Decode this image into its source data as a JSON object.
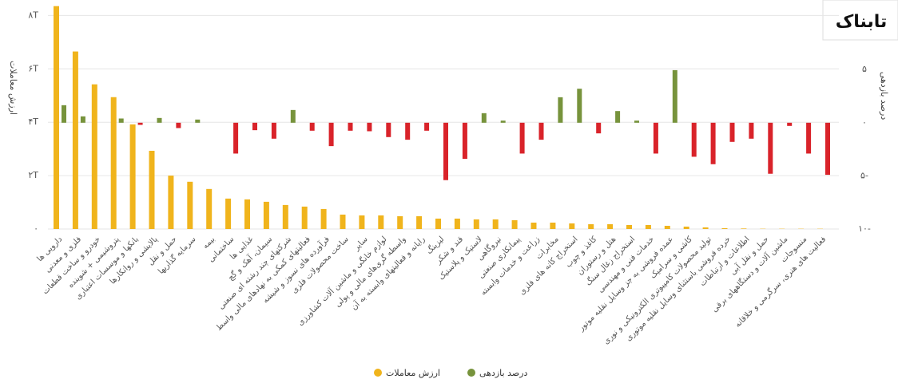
{
  "chart_data": {
    "type": "bar",
    "logo": "تابناک",
    "y_label": "ارزش معاملات",
    "y2_label": "درصد بازدهی",
    "categories": [
      "دارویی ها",
      "فلزی و معدنی",
      "خودرو و ساخت قطعات",
      "پتروشیمی + شوینده",
      "بانکها و موسسات اعتباری",
      "پالایشی و روانکارها",
      "حمل و نقل",
      "سرمایه گذاریها",
      "بیمه",
      "ساختمانی",
      "غذایی ها",
      "سیمان، آهک و گچ",
      "شرکتهای چند رشته ای صنعتی",
      "فعالیتهای کمکی به نهادهای مالی واسط",
      "فرآورده های نسوز و شیشه",
      "ساخت محصولات فلزی",
      "سایر",
      "لوازم خانگی و ماشین آلات کشاورزی",
      "واسطه گری‌های مالی و پولی",
      "رایانه و فعالیتهای وابسته به آن",
      "لیزینگ",
      "قند و شکر",
      "لاستیک و پلاستیک",
      "نیروگاهی",
      "پیمانکاری صنعتی",
      "زراعت و خدمات وابسته",
      "مخابرات",
      "استخراج کانه های فلزی",
      "کاغذ و چوب",
      "هتل و رستوران",
      "استخراج زغال سنگ",
      "خدمات فنی و مهندسی",
      "عمده فروشی به جز وسایل نقلیه موتور",
      "کاشی و سرامیک",
      "تولید محصولات کامپیوتری الکترونیکی و نوری",
      "خرده فروشی باستثنای وسایل نقلیه موتوری",
      "اطلاعات و ارتباطات",
      "حمل و نقل آبی",
      "ماشین آلات و دستگاههای برقی",
      "منسوجات",
      "فعالیت های هنری، سرگرمی و خلاقانه"
    ],
    "series": [
      {
        "name": "ارزش معاملات",
        "color": "#f0b41c",
        "values": [
          8.35,
          6.65,
          5.42,
          4.94,
          3.92,
          2.93,
          2.0,
          1.77,
          1.5,
          1.14,
          1.11,
          1.02,
          0.9,
          0.84,
          0.75,
          0.54,
          0.51,
          0.51,
          0.48,
          0.48,
          0.39,
          0.39,
          0.36,
          0.36,
          0.33,
          0.24,
          0.24,
          0.21,
          0.18,
          0.18,
          0.15,
          0.15,
          0.12,
          0.09,
          0.06,
          0.03,
          0.02,
          0.01,
          0.01,
          0.01,
          0.01
        ]
      },
      {
        "name": "درصد بازدهی",
        "color": "#77933c",
        "negative_color": "#d9232a",
        "axis": "y2",
        "values": [
          1.65,
          0.6,
          0,
          0.4,
          -0.2,
          0.45,
          -0.5,
          0.3,
          0,
          -2.9,
          -0.7,
          -1.5,
          1.2,
          -0.75,
          -2.2,
          -0.75,
          -0.8,
          -1.35,
          -1.6,
          -0.75,
          -5.4,
          -3.4,
          0.9,
          0.2,
          -2.9,
          -1.6,
          2.4,
          3.2,
          -1.0,
          1.1,
          0.2,
          -2.9,
          4.95,
          -3.2,
          -3.9,
          -1.8,
          -1.5,
          -4.8,
          -0.3,
          -2.9,
          -4.9
        ]
      }
    ],
    "ylim": [
      0,
      8.4
    ],
    "yticks": [
      {
        "value": 0,
        "label": "۰"
      },
      {
        "value": 2,
        "label": "۲T"
      },
      {
        "value": 4,
        "label": "۴T"
      },
      {
        "value": 6,
        "label": "۶T"
      },
      {
        "value": 8,
        "label": "۸T"
      }
    ],
    "y2lim": [
      -10,
      11.1
    ],
    "y2ticks": [
      {
        "value": -10,
        "label": "۱۰-"
      },
      {
        "value": -5,
        "label": "۵-"
      },
      {
        "value": 0,
        "label": "۰"
      },
      {
        "value": 5,
        "label": "۵"
      }
    ],
    "grid": true
  }
}
